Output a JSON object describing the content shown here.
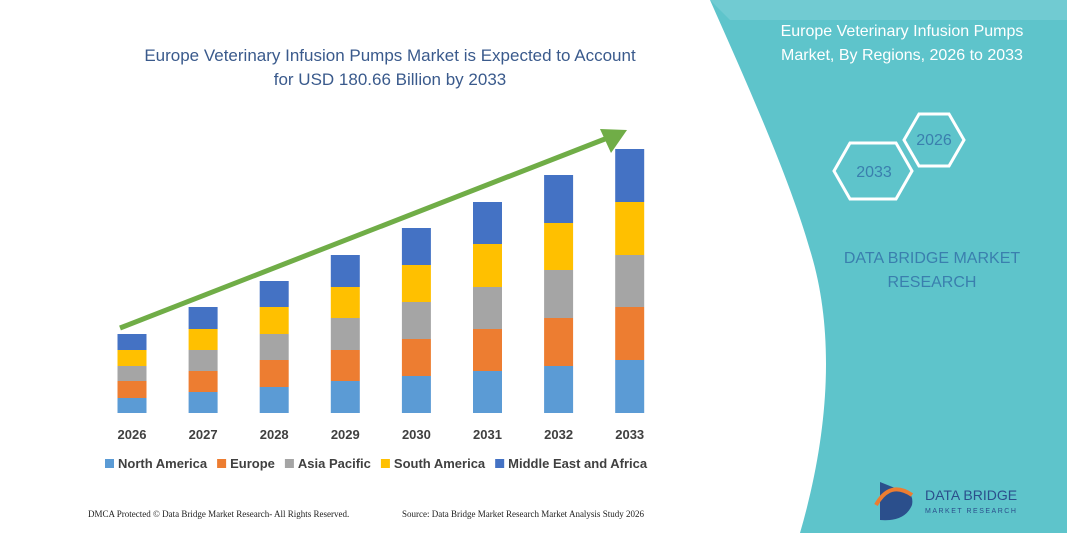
{
  "chart_data": {
    "type": "stacked_bar",
    "title": "Europe Veterinary Infusion Pumps Market is Expected to Account for USD 180.66 Billion by 2033",
    "categories": [
      "2026",
      "2027",
      "2028",
      "2029",
      "2030",
      "2031",
      "2032",
      "2033"
    ],
    "series": [
      {
        "name": "North America",
        "color": "#5b9bd5",
        "values": [
          15,
          21,
          26,
          32,
          37,
          42,
          47,
          53
        ]
      },
      {
        "name": "Europe",
        "color": "#ed7d31",
        "values": [
          17,
          21,
          27,
          31,
          37,
          42,
          48,
          53
        ]
      },
      {
        "name": "Asia Pacific",
        "color": "#a5a5a5",
        "values": [
          15,
          21,
          26,
          32,
          37,
          42,
          48,
          52
        ]
      },
      {
        "name": "South America",
        "color": "#ffc000",
        "values": [
          16,
          21,
          27,
          31,
          37,
          43,
          47,
          53
        ]
      },
      {
        "name": "Middle East and Africa",
        "color": "#4472c4",
        "values": [
          16,
          22,
          26,
          32,
          37,
          42,
          48,
          53
        ]
      }
    ],
    "legend": "bottom",
    "side_title": "Europe Veterinary Infusion Pumps Market, By Regions, 2026 to 2033",
    "badges": [
      "2026",
      "2033"
    ],
    "brand": "DATA BRIDGE MARKET RESEARCH",
    "logo_title": "DATA BRIDGE",
    "logo_subtitle": "MARKET RESEARCH",
    "footer_left": "DMCA Protected © Data Bridge Market Research- All Rights Reserved.",
    "footer_right": "Source: Data Bridge Market Research Market Analysis Study 2026"
  }
}
